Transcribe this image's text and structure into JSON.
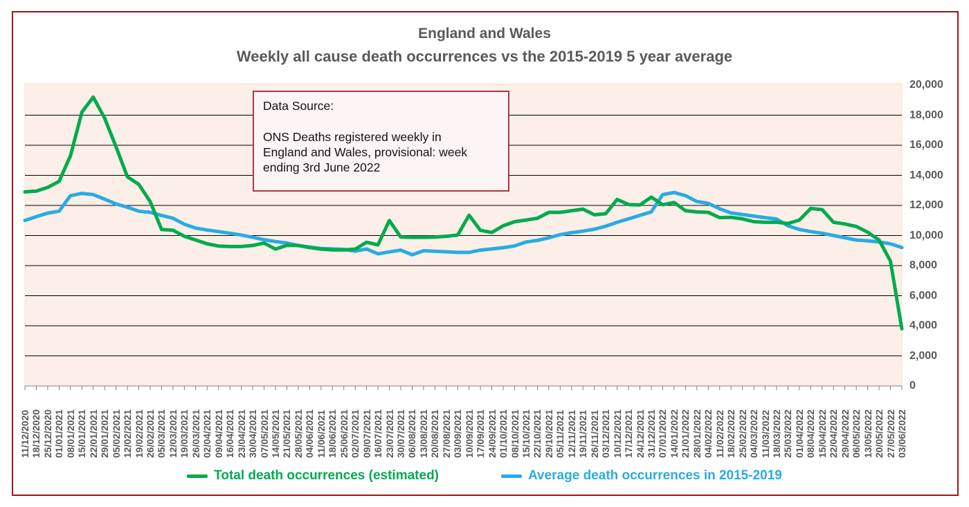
{
  "title": {
    "line1": "England and Wales",
    "line2": "Weekly all cause death occurrences vs the 2015-2019 5 year average"
  },
  "data_source_box": {
    "heading": "Data Source:",
    "body": "ONS Deaths registered weekly in England and Wales, provisional: week ending 3rd June 2022"
  },
  "y_axis": {
    "tick_labels": [
      "0",
      "2,000",
      "4,000",
      "6,000",
      "8,000",
      "10,000",
      "12,000",
      "14,000",
      "16,000",
      "18,000",
      "20,000"
    ]
  },
  "legend": {
    "items": [
      {
        "label": "Total death occurrences (estimated)",
        "color": "#00AB4E"
      },
      {
        "label": "Average death occurrences in 2015-2019",
        "color": "#29ABE2"
      }
    ]
  },
  "colors": {
    "plot_bg": "#FCEFE7",
    "plot_edge": "#F2E4C6",
    "grid": "#000000",
    "axis": "#808080",
    "frame": "#A31515",
    "box_border": "#A63A44",
    "box_bg": "#FDF4F6",
    "text": "#595959",
    "green": "#00AB4E",
    "blue": "#29ABE2"
  },
  "chart_data": {
    "type": "line",
    "title": "England and Wales",
    "subtitle": "Weekly all cause death occurrences vs the 2015-2019 5 year average",
    "xlabel": "",
    "ylabel": "",
    "ylim": [
      0,
      20000
    ],
    "y_tick_step": 2000,
    "grid": true,
    "legend_position": "bottom",
    "x": [
      "11/12/2020",
      "18/12/2020",
      "25/12/2020",
      "01/01/2021",
      "08/01/2021",
      "15/01/2021",
      "22/01/2021",
      "29/01/2021",
      "05/02/2021",
      "12/02/2021",
      "19/02/2021",
      "26/02/2021",
      "05/03/2021",
      "12/03/2021",
      "19/03/2021",
      "26/03/2021",
      "02/04/2021",
      "09/04/2021",
      "16/04/2021",
      "23/04/2021",
      "30/04/2021",
      "07/05/2021",
      "14/05/2021",
      "21/05/2021",
      "28/05/2021",
      "04/06/2021",
      "11/06/2021",
      "18/06/2021",
      "25/06/2021",
      "02/07/2021",
      "09/07/2021",
      "16/07/2021",
      "23/07/2021",
      "30/07/2021",
      "06/08/2021",
      "13/08/2021",
      "20/08/2021",
      "27/08/2021",
      "03/09/2021",
      "10/09/2021",
      "17/09/2021",
      "24/09/2021",
      "01/10/2021",
      "08/10/2021",
      "15/10/2021",
      "22/10/2021",
      "29/10/2021",
      "05/11/2021",
      "12/11/2021",
      "19/11/2021",
      "26/11/2021",
      "03/12/2021",
      "10/12/2021",
      "17/12/2021",
      "24/12/2021",
      "31/12/2021",
      "07/01/2022",
      "14/01/2022",
      "21/01/2022",
      "28/01/2022",
      "04/02/2022",
      "11/02/2022",
      "18/02/2022",
      "25/02/2022",
      "04/03/2022",
      "11/03/2022",
      "18/03/2022",
      "25/03/2022",
      "01/04/2022",
      "08/04/2022",
      "15/04/2022",
      "22/04/2022",
      "29/04/2022",
      "06/05/2022",
      "13/05/2022",
      "20/05/2022",
      "27/05/2022",
      "03/06/2022"
    ],
    "series": [
      {
        "name": "Total death occurrences (estimated)",
        "color": "#00AB4E",
        "values": [
          12900,
          12950,
          13200,
          13600,
          15300,
          18200,
          19200,
          17800,
          15900,
          13900,
          13400,
          12250,
          10400,
          10350,
          9950,
          9700,
          9450,
          9300,
          9270,
          9270,
          9340,
          9500,
          9100,
          9350,
          9340,
          9200,
          9100,
          9050,
          9040,
          9100,
          9550,
          9380,
          11000,
          9900,
          9880,
          9880,
          9900,
          9950,
          10030,
          11350,
          10340,
          10200,
          10650,
          10920,
          11030,
          11150,
          11540,
          11540,
          11650,
          11750,
          11380,
          11450,
          12400,
          12060,
          12030,
          12550,
          12050,
          12200,
          11650,
          11570,
          11540,
          11190,
          11210,
          11110,
          10920,
          10880,
          10880,
          10800,
          11030,
          11800,
          11720,
          10880,
          10770,
          10600,
          10220,
          9700,
          8300,
          3800
        ]
      },
      {
        "name": "Average death occurrences in 2015-2019",
        "color": "#29ABE2",
        "values": [
          11000,
          11250,
          11490,
          11620,
          12650,
          12800,
          12720,
          12420,
          12100,
          11880,
          11620,
          11540,
          11340,
          11150,
          10750,
          10490,
          10370,
          10260,
          10150,
          10030,
          9880,
          9720,
          9600,
          9500,
          9340,
          9230,
          9140,
          9110,
          9080,
          8960,
          9110,
          8780,
          8910,
          9030,
          8720,
          8990,
          8950,
          8920,
          8880,
          8880,
          9030,
          9110,
          9190,
          9310,
          9570,
          9680,
          9850,
          10060,
          10190,
          10290,
          10420,
          10620,
          10880,
          11110,
          11340,
          11570,
          12720,
          12860,
          12650,
          12260,
          12140,
          11780,
          11500,
          11400,
          11290,
          11190,
          11100,
          10650,
          10400,
          10260,
          10150,
          10000,
          9850,
          9700,
          9650,
          9570,
          9450,
          9200
        ]
      }
    ]
  }
}
